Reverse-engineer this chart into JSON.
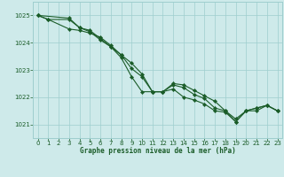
{
  "title": "Graphe pression niveau de la mer (hPa)",
  "bg_color": "#ceeaea",
  "grid_color": "#9ecece",
  "line_color": "#1a5c28",
  "marker_color": "#1a5c28",
  "xlim": [
    -0.5,
    23.5
  ],
  "ylim": [
    1020.5,
    1025.5
  ],
  "yticks": [
    1021,
    1022,
    1023,
    1024,
    1025
  ],
  "xticks": [
    0,
    1,
    2,
    3,
    4,
    5,
    6,
    7,
    8,
    9,
    10,
    11,
    12,
    13,
    14,
    15,
    16,
    17,
    18,
    19,
    20,
    21,
    22,
    23
  ],
  "line1_x": [
    0,
    1,
    3,
    4,
    5,
    6,
    7,
    8,
    9,
    10,
    11,
    12,
    13,
    14,
    15,
    16,
    17,
    18,
    19,
    20,
    21,
    22,
    23
  ],
  "line1_y": [
    1025.0,
    1024.85,
    1024.85,
    1024.55,
    1024.45,
    1024.15,
    1023.85,
    1023.55,
    1023.25,
    1022.85,
    1022.2,
    1022.2,
    1022.5,
    1022.45,
    1022.25,
    1022.05,
    1021.85,
    1021.5,
    1021.1,
    1021.5,
    1021.6,
    1021.7,
    1021.5
  ],
  "line2_x": [
    0,
    3,
    4,
    5,
    6,
    7,
    8,
    9,
    10,
    11,
    12,
    13,
    14,
    15,
    16,
    17,
    18,
    19,
    20,
    21,
    22,
    23
  ],
  "line2_y": [
    1025.0,
    1024.9,
    1024.55,
    1024.4,
    1024.1,
    1023.85,
    1023.45,
    1022.75,
    1022.2,
    1022.2,
    1022.2,
    1022.45,
    1022.35,
    1022.1,
    1021.95,
    1021.6,
    1021.5,
    1021.2,
    1021.5,
    1021.6,
    1021.7,
    1021.5
  ],
  "line3_x": [
    0,
    1,
    3,
    4,
    5,
    6,
    7,
    8,
    9,
    10,
    11,
    12,
    13,
    14,
    15,
    16,
    17,
    18,
    19,
    20,
    21,
    22,
    23
  ],
  "line3_y": [
    1025.0,
    1024.85,
    1024.5,
    1024.45,
    1024.35,
    1024.2,
    1023.9,
    1023.55,
    1023.05,
    1022.75,
    1022.2,
    1022.2,
    1022.3,
    1022.0,
    1021.9,
    1021.75,
    1021.5,
    1021.45,
    1021.1,
    1021.5,
    1021.5,
    1021.7,
    1021.5
  ]
}
